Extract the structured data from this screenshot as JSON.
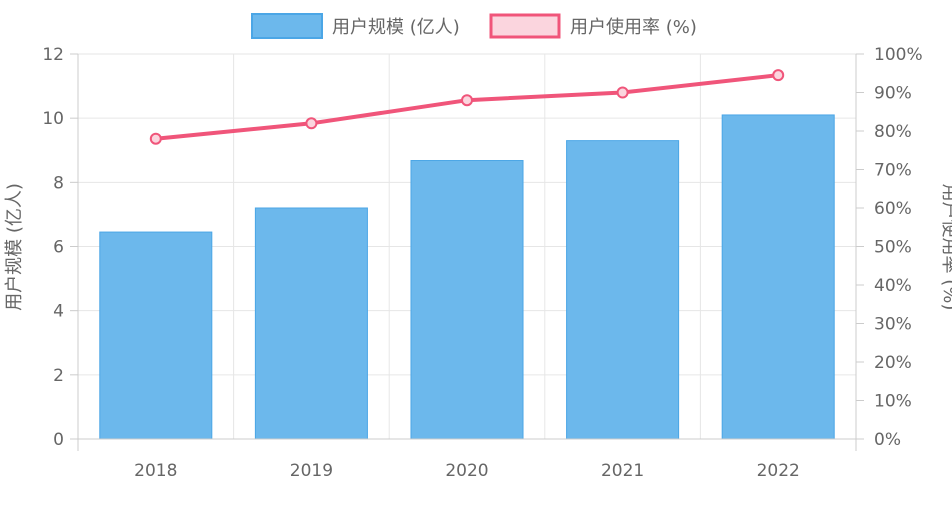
{
  "chart_data": {
    "type": "bar",
    "categories": [
      "2018",
      "2019",
      "2020",
      "2021",
      "2022"
    ],
    "series": [
      {
        "name": "用户规模 (亿人)",
        "type": "bar",
        "axis": "left",
        "values": [
          6.45,
          7.2,
          8.68,
          9.3,
          10.1
        ],
        "color": "#6cb8ec",
        "border_color": "#4ba6e6"
      },
      {
        "name": "用户使用率 (%)",
        "type": "line",
        "axis": "right",
        "values": [
          78,
          82,
          88,
          90,
          94.5
        ],
        "color": "#f0557a",
        "fill_color": "#fbd5de"
      }
    ],
    "left_axis": {
      "label": "用户规模 (亿人)",
      "min": 0,
      "max": 12,
      "ticks": [
        0,
        2,
        4,
        6,
        8,
        10,
        12
      ]
    },
    "right_axis": {
      "label": "用户使用率 (%)",
      "min": 0,
      "max": 100,
      "ticks": [
        0,
        10,
        20,
        30,
        40,
        50,
        60,
        70,
        80,
        90,
        100
      ],
      "tick_suffix": "%"
    },
    "legend": {
      "position": "top-center"
    },
    "grid": true
  }
}
